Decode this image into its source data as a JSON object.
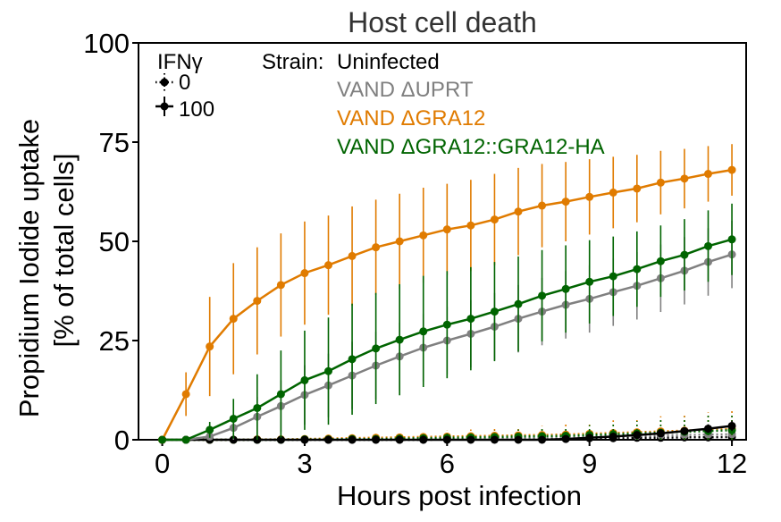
{
  "chart_data": {
    "type": "line",
    "title": "Host cell death",
    "xlabel": "Hours post infection",
    "ylabel": [
      "Propidium Iodide uptake",
      "[% of total cells]"
    ],
    "xlim": [
      -0.5,
      12.3
    ],
    "ylim": [
      0,
      100
    ],
    "xticks": [
      0,
      3,
      6,
      9,
      12
    ],
    "yticks": [
      0,
      25,
      50,
      75,
      100
    ],
    "x": [
      0,
      0.5,
      1,
      1.5,
      2,
      2.5,
      3,
      3.5,
      4,
      4.5,
      5,
      5.5,
      6,
      6.5,
      7,
      7.5,
      8,
      8.5,
      9,
      9.5,
      10,
      10.5,
      11,
      11.5,
      12
    ],
    "legend_ifn": {
      "title": "IFNγ",
      "entries": [
        {
          "label": "0",
          "linestyle": "dotted"
        },
        {
          "label": "100",
          "linestyle": "solid"
        }
      ]
    },
    "legend_strain": {
      "title": "Strain:",
      "entries": [
        {
          "label": "Uninfected",
          "color": "#000000"
        },
        {
          "label": "VAND ΔUPRT",
          "color": "#808080"
        },
        {
          "label": "VAND ΔGRA12",
          "color": "#e07b00"
        },
        {
          "label": "VAND ΔGRA12::GRA12-HA",
          "color": "#006400"
        }
      ]
    },
    "series": [
      {
        "name": "Uninfected IFNγ 0",
        "color": "#000000",
        "linestyle": "dotted",
        "values": [
          0,
          0,
          0,
          0,
          0,
          0,
          0,
          0,
          0,
          0,
          0,
          0,
          0.1,
          0.1,
          0.2,
          0.2,
          0.3,
          0.3,
          0.4,
          0.4,
          0.5,
          0.5,
          0.6,
          0.6,
          0.7
        ],
        "errors": [
          0,
          0,
          0,
          0,
          0,
          0,
          0,
          0,
          0,
          0,
          0,
          0,
          0,
          0,
          0,
          0,
          0,
          0,
          0,
          0,
          0,
          0,
          0,
          0,
          0
        ]
      },
      {
        "name": "VAND ΔUPRT IFNγ 0",
        "color": "#808080",
        "linestyle": "dotted",
        "values": [
          0,
          0,
          0,
          0,
          0,
          0,
          0,
          0,
          0.1,
          0.1,
          0.2,
          0.2,
          0.3,
          0.3,
          0.4,
          0.5,
          0.6,
          0.7,
          0.8,
          0.9,
          1.0,
          1.1,
          1.2,
          1.3,
          1.4
        ],
        "errors": [
          0,
          0,
          0,
          0,
          0,
          0,
          0,
          0,
          0,
          0,
          0,
          0,
          0,
          0,
          0,
          0,
          0,
          0,
          0,
          0,
          0,
          0,
          0,
          0,
          0
        ]
      },
      {
        "name": "VAND ΔGRA12 IFNγ 0",
        "color": "#e07b00",
        "linestyle": "dotted",
        "values": [
          0,
          0,
          0,
          0,
          0.1,
          0.1,
          0.2,
          0.3,
          0.4,
          0.5,
          0.6,
          0.7,
          0.8,
          0.9,
          1.0,
          1.1,
          1.2,
          1.3,
          1.5,
          1.7,
          1.9,
          2.1,
          2.3,
          2.5,
          2.7
        ],
        "errors": [
          0,
          0,
          0,
          0,
          0.1,
          0.2,
          0.3,
          0.5,
          0.7,
          0.9,
          1.1,
          1.3,
          1.5,
          1.7,
          1.9,
          2.1,
          2.3,
          2.6,
          2.9,
          3.2,
          3.5,
          3.8,
          4.1,
          4.4,
          4.7
        ]
      },
      {
        "name": "VAND ΔGRA12::GRA12-HA IFNγ 0",
        "color": "#006400",
        "linestyle": "dotted",
        "values": [
          0,
          0,
          0,
          0,
          0,
          0,
          0.1,
          0.1,
          0.2,
          0.2,
          0.3,
          0.4,
          0.5,
          0.6,
          0.7,
          0.8,
          0.9,
          1.0,
          1.2,
          1.4,
          1.6,
          1.8,
          2.0,
          2.2,
          2.4
        ],
        "errors": [
          0,
          0,
          0,
          0,
          0,
          0,
          0.2,
          0.3,
          0.4,
          0.6,
          0.8,
          1.0,
          1.2,
          1.4,
          1.6,
          1.8,
          2.0,
          2.2,
          2.5,
          2.8,
          3.1,
          3.4,
          3.7,
          4.0,
          4.3
        ]
      },
      {
        "name": "Uninfected IFNγ 100",
        "color": "#000000",
        "linestyle": "solid",
        "values": [
          0,
          0,
          0,
          0,
          0,
          0,
          0,
          0,
          0,
          0,
          0,
          0,
          0,
          0,
          0,
          0,
          0,
          0.2,
          0.5,
          0.8,
          1.2,
          1.6,
          2.2,
          2.8,
          3.5
        ],
        "errors": [
          0,
          0,
          0,
          0,
          0,
          0,
          0,
          0,
          0,
          0,
          0,
          0,
          0,
          0,
          0,
          0,
          0,
          0.2,
          0.3,
          0.4,
          0.5,
          0.7,
          0.9,
          1.1,
          1.3
        ]
      },
      {
        "name": "VAND ΔUPRT IFNγ 100",
        "color": "#808080",
        "linestyle": "solid",
        "values": [
          0,
          0,
          0.8,
          3.0,
          5.8,
          8.5,
          11.3,
          13.7,
          16.2,
          18.7,
          21.0,
          23.2,
          25.0,
          26.7,
          28.5,
          30.5,
          32.3,
          34.0,
          35.5,
          37.2,
          38.8,
          40.7,
          42.6,
          44.8,
          46.7
        ],
        "errors": [
          0,
          0,
          1.0,
          3.0,
          5.0,
          6.5,
          7.5,
          8.0,
          8.5,
          8.5,
          8.5,
          8.5,
          8.5,
          8.5,
          8.5,
          8.5,
          8.5,
          8.5,
          8.5,
          8.5,
          8.5,
          8.5,
          8.5,
          8.5,
          8.5
        ]
      },
      {
        "name": "VAND ΔGRA12 IFNγ 100",
        "color": "#e07b00",
        "linestyle": "solid",
        "values": [
          0,
          11.5,
          23.5,
          30.5,
          35.0,
          39.0,
          42.0,
          44.0,
          46.3,
          48.5,
          50.0,
          51.5,
          53.0,
          54.0,
          55.5,
          57.5,
          59.0,
          60.0,
          61.2,
          62.3,
          63.3,
          64.8,
          65.8,
          67.0,
          68.0
        ],
        "errors": [
          0,
          5.5,
          12.5,
          14.0,
          13.5,
          13.0,
          13.0,
          12.5,
          12.5,
          12.0,
          12.0,
          12.0,
          11.5,
          11.5,
          11.5,
          11.0,
          10.5,
          10.0,
          9.5,
          9.0,
          8.5,
          8.0,
          7.5,
          7.0,
          6.5
        ]
      },
      {
        "name": "VAND ΔGRA12::GRA12-HA IFNγ 100",
        "color": "#006400",
        "linestyle": "solid",
        "values": [
          0,
          0,
          2.5,
          5.3,
          8.0,
          11.5,
          15.0,
          17.3,
          20.3,
          23.0,
          25.2,
          27.3,
          29.0,
          30.5,
          32.3,
          34.2,
          36.3,
          38.0,
          39.8,
          41.2,
          43.0,
          45.0,
          46.6,
          48.8,
          50.5
        ],
        "errors": [
          0,
          0.5,
          2.0,
          5.0,
          8.5,
          11.0,
          12.5,
          13.5,
          14.0,
          14.0,
          14.0,
          14.0,
          13.5,
          13.0,
          12.5,
          12.0,
          11.5,
          11.0,
          10.5,
          10.0,
          9.5,
          9.0,
          9.0,
          9.0,
          9.0
        ]
      }
    ]
  }
}
